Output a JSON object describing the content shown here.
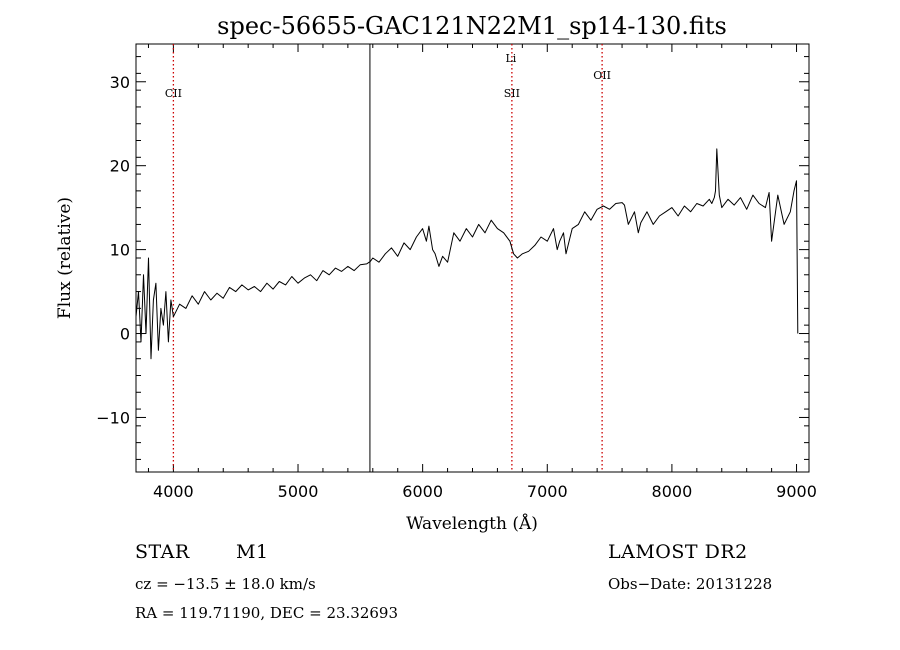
{
  "chart_data": {
    "type": "line",
    "title": "spec-56655-GAC121N22M1_sp14-130.fits",
    "xlabel": "Wavelength (Å)",
    "ylabel": "Flux (relative)",
    "xlim": [
      3700,
      9100
    ],
    "ylim": [
      -16.5,
      34.5
    ],
    "xticks": [
      4000,
      5000,
      6000,
      7000,
      8000,
      9000
    ],
    "yticks": [
      -10,
      0,
      10,
      20,
      30
    ],
    "grid": false,
    "legend": "none",
    "series": [
      {
        "color": "#000000",
        "x": [
          3700,
          3720,
          3740,
          3760,
          3780,
          3800,
          3820,
          3840,
          3860,
          3880,
          3900,
          3920,
          3940,
          3960,
          3980,
          4000,
          4050,
          4100,
          4150,
          4200,
          4250,
          4300,
          4350,
          4400,
          4450,
          4500,
          4550,
          4600,
          4650,
          4700,
          4750,
          4800,
          4850,
          4900,
          4950,
          5000,
          5050,
          5100,
          5150,
          5200,
          5250,
          5300,
          5350,
          5400,
          5450,
          5500,
          5550,
          5580,
          5600,
          5650,
          5700,
          5750,
          5800,
          5850,
          5900,
          5950,
          6000,
          6030,
          6050,
          6080,
          6100,
          6130,
          6160,
          6200,
          6250,
          6300,
          6350,
          6400,
          6450,
          6500,
          6550,
          6600,
          6650,
          6700,
          6730,
          6760,
          6800,
          6850,
          6900,
          6950,
          7000,
          7050,
          7080,
          7100,
          7130,
          7150,
          7200,
          7250,
          7300,
          7350,
          7400,
          7450,
          7500,
          7550,
          7600,
          7620,
          7650,
          7700,
          7730,
          7750,
          7800,
          7850,
          7900,
          7950,
          8000,
          8050,
          8100,
          8150,
          8200,
          8250,
          8300,
          8320,
          8340,
          8350,
          8360,
          8380,
          8400,
          8450,
          8500,
          8550,
          8600,
          8650,
          8700,
          8750,
          8780,
          8800,
          8850,
          8900,
          8950,
          8980,
          9000,
          9010
        ],
        "y": [
          2,
          5,
          -1,
          7,
          0,
          9,
          -3,
          4,
          6,
          -2,
          3,
          1,
          5,
          -1,
          4,
          2,
          3.5,
          3,
          4.5,
          3.5,
          5,
          4,
          4.8,
          4.2,
          5.5,
          5,
          5.8,
          5.2,
          5.6,
          5,
          6,
          5.3,
          6.2,
          5.8,
          6.8,
          6,
          6.6,
          7,
          6.3,
          7.5,
          7,
          7.8,
          7.4,
          8,
          7.5,
          8.2,
          8.3,
          8.6,
          9,
          8.5,
          9.5,
          10.2,
          9.2,
          10.8,
          10,
          11.5,
          12.5,
          11,
          12.8,
          10,
          9.5,
          8,
          9.2,
          8.5,
          12,
          11,
          12.5,
          11.5,
          13,
          12,
          13.5,
          12.5,
          12,
          11,
          9.5,
          9,
          9.5,
          9.8,
          10.5,
          11.5,
          11,
          12.5,
          10,
          11,
          12,
          9.5,
          12.5,
          13,
          14.5,
          13.5,
          14.8,
          15.2,
          14.8,
          15.5,
          15.6,
          15.3,
          13,
          14.5,
          12,
          13.2,
          14.5,
          13,
          14,
          14.5,
          15,
          14,
          15.2,
          14.5,
          15.5,
          15.2,
          16,
          15.5,
          16.2,
          17,
          22,
          16.5,
          15,
          16,
          15.3,
          16.2,
          14.8,
          16.5,
          15.5,
          15,
          16.8,
          11,
          16.5,
          13,
          14.5,
          17,
          18.2,
          0
        ]
      }
    ],
    "lines": [
      {
        "x": 4000,
        "label": "CII",
        "style": "dotted",
        "color": "#cc0000"
      },
      {
        "x": 5577,
        "label": "",
        "style": "solid",
        "color": "#000000"
      },
      {
        "x": 6716,
        "label": "SII",
        "style": "dotted",
        "color": "#cc0000"
      },
      {
        "x": 6708,
        "label": "Li",
        "style": "none",
        "color": "#000000"
      },
      {
        "x": 7440,
        "label": "OII",
        "style": "dotted",
        "color": "#cc0000"
      }
    ]
  },
  "info": {
    "object_class": "STAR",
    "subclass": "M1",
    "survey": "LAMOST DR2",
    "cz": "cz = −13.5 ± 18.0 km/s",
    "obs_date": "Obs−Date: 20131228",
    "coords": "RA = 119.71190, DEC =  23.32693"
  }
}
